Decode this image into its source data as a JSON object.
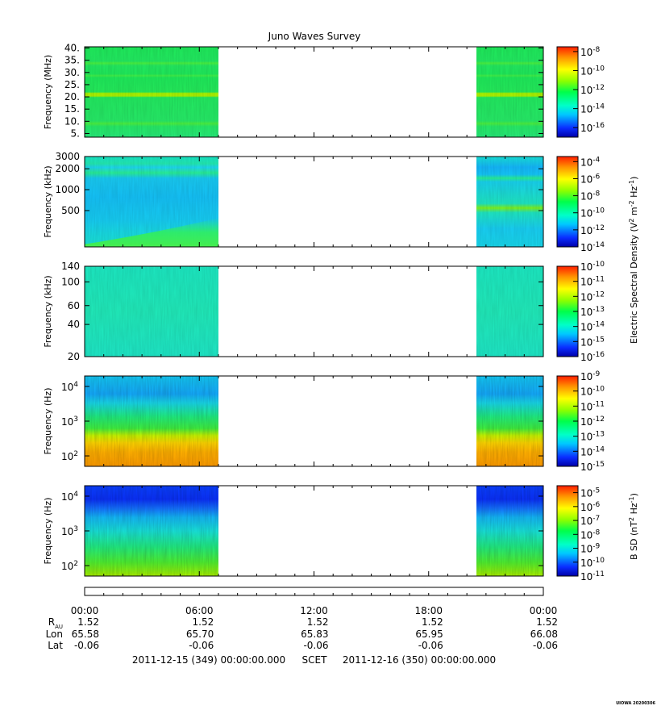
{
  "chart_data": {
    "type": "heatmap",
    "title": "Juno Waves Survey",
    "data_coverage": [
      {
        "start": "00:00",
        "end": "07:00"
      },
      {
        "start": "20:30",
        "end": "24:00"
      }
    ],
    "panels": [
      {
        "ylabel": "Frequency (MHz)",
        "yscale": "linear",
        "ylim": [
          3.5,
          40.5
        ],
        "yticks": [
          "40.",
          "35.",
          "30.",
          "25.",
          "20.",
          "15.",
          "10.",
          "5."
        ],
        "colorbar_ticks": [
          "-8",
          "-10",
          "-12",
          "-14",
          "-16"
        ],
        "colorbar_range_exp": [
          -17,
          -7.5
        ]
      },
      {
        "ylabel": "Frequency (kHz)",
        "yscale": "log",
        "ylim": [
          150,
          3000
        ],
        "yticks": [
          "3000",
          "2000",
          "1000",
          "500"
        ],
        "colorbar_ticks": [
          "-4",
          "-6",
          "-8",
          "-10",
          "-12",
          "-14"
        ],
        "colorbar_range_exp": [
          -14,
          -3.4
        ]
      },
      {
        "ylabel": "Frequency (kHz)",
        "yscale": "log",
        "ylim": [
          20,
          140
        ],
        "yticks": [
          "140",
          "100",
          "60",
          "40",
          "20"
        ],
        "colorbar_ticks": [
          "-10",
          "-11",
          "-12",
          "-13",
          "-14",
          "-15",
          "-16"
        ],
        "colorbar_range_exp": [
          -16,
          -10
        ]
      },
      {
        "ylabel": "Frequency (Hz)",
        "yscale": "log",
        "ylim": [
          50,
          20000
        ],
        "yticks": [
          "4",
          "3",
          "2"
        ],
        "colorbar_ticks": [
          "-9",
          "-10",
          "-11",
          "-12",
          "-13",
          "-14",
          "-15"
        ],
        "colorbar_range_exp": [
          -15,
          -9
        ]
      },
      {
        "ylabel": "Frequency (Hz)",
        "yscale": "log",
        "ylim": [
          50,
          20000
        ],
        "yticks": [
          "4",
          "3",
          "2"
        ],
        "colorbar_ticks": [
          "-5",
          "-6",
          "-7",
          "-8",
          "-9",
          "-10",
          "-11"
        ],
        "colorbar_range_exp": [
          -11,
          -4.5
        ]
      }
    ],
    "colorbar_labels": {
      "electric": "Electric Spectral Density (V",
      "magnetic": "B SD (nT"
    },
    "time_axis": {
      "ticks": [
        "00:00",
        "06:00",
        "12:00",
        "18:00",
        "00:00"
      ],
      "rows": [
        {
          "label": "R",
          "sub": "AU",
          "values": [
            "1.52",
            "1.52",
            "1.52",
            "1.52",
            "1.52"
          ]
        },
        {
          "label": "Lon",
          "sub": "",
          "values": [
            "65.58",
            "65.70",
            "65.83",
            "65.95",
            "66.08"
          ]
        },
        {
          "label": "Lat",
          "sub": "",
          "values": [
            "-0.06",
            "-0.06",
            "-0.06",
            "-0.06",
            "-0.06"
          ]
        }
      ]
    },
    "footer": {
      "start": "2011-12-15 (349) 00:00:00.000",
      "scet": "SCET",
      "end": "2011-12-16 (350) 00:00:00.000"
    },
    "credit": "UIOWA 20200306"
  }
}
